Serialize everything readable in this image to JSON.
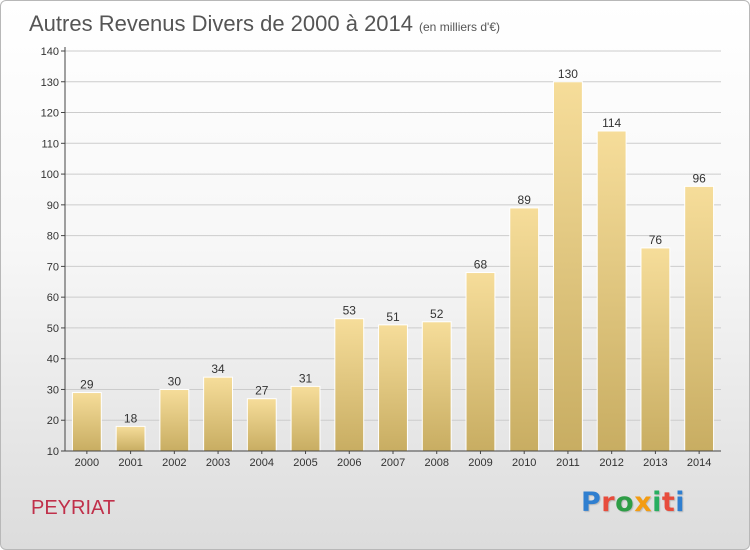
{
  "header": {
    "title": "Autres Revenus Divers de 2000 à 2014",
    "unit": "(en milliers d'€)"
  },
  "commune": "PEYRIAT",
  "logo": {
    "text": "Proxiti",
    "letter_colors": [
      "#2f7fd0",
      "#e74c3c",
      "#2e9d46",
      "#f39c12",
      "#27ae60",
      "#e74c3c",
      "#2f7fd0"
    ]
  },
  "colors": {
    "bar_light": "#f6dd9a",
    "bar_dark": "#c8ad62",
    "grid": "#cccccc",
    "axis": "#444444"
  },
  "chart_data": {
    "type": "bar",
    "title": "Autres Revenus Divers de 2000 à 2014",
    "subtitle": "(en milliers d'€)",
    "categories": [
      "2000",
      "2001",
      "2002",
      "2003",
      "2004",
      "2005",
      "2006",
      "2007",
      "2008",
      "2009",
      "2010",
      "2011",
      "2012",
      "2013",
      "2014"
    ],
    "values": [
      29,
      18,
      30,
      34,
      27,
      31,
      53,
      51,
      52,
      68,
      89,
      130,
      114,
      76,
      96
    ],
    "ylim": [
      10,
      140
    ],
    "yticks": [
      10,
      20,
      30,
      40,
      50,
      60,
      70,
      80,
      90,
      100,
      110,
      120,
      130,
      140
    ],
    "grid": true,
    "legend": "none"
  }
}
